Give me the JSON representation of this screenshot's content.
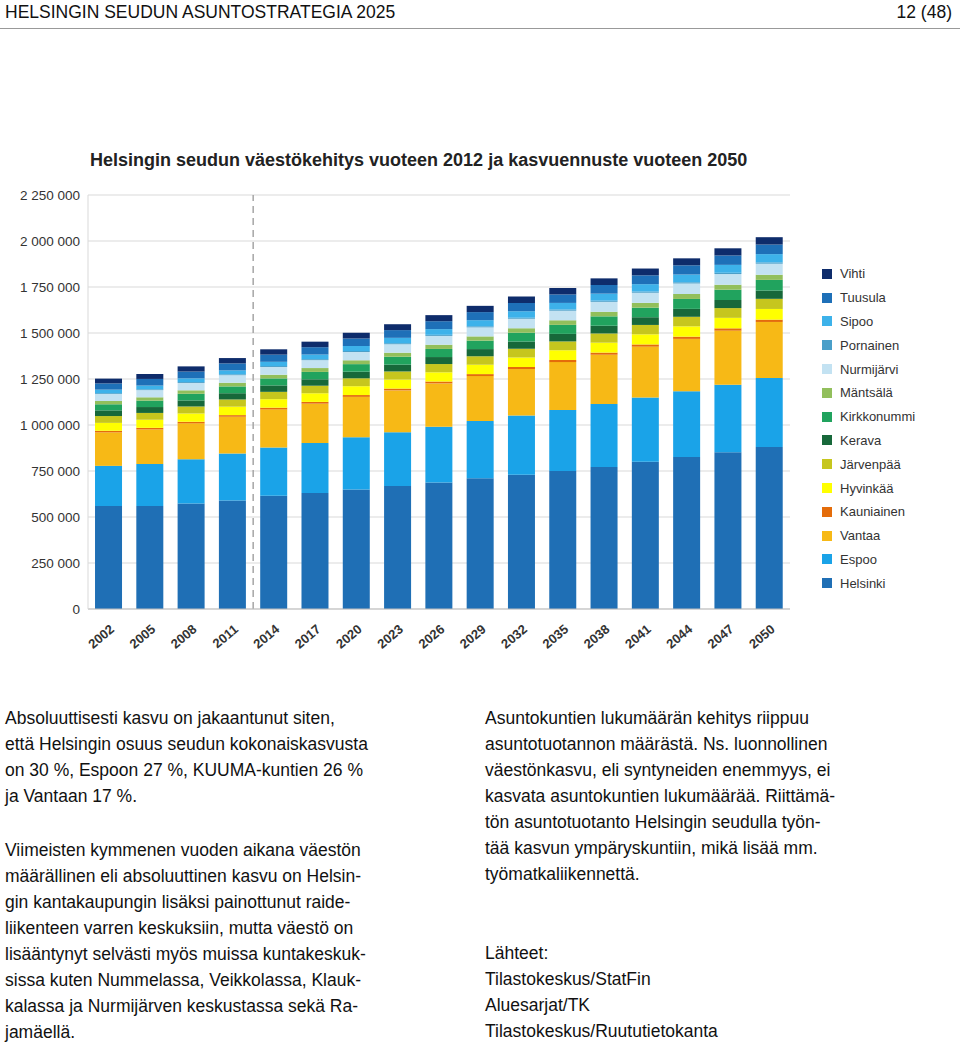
{
  "header": {
    "title": "HELSINGIN SEUDUN ASUNTOSTRATEGIA 2025",
    "page": "12 (48)"
  },
  "chart_data": {
    "type": "bar",
    "title": "Helsingin seudun väestökehitys vuoteen 2012 ja kasvuennuste vuoteen 2050",
    "stacked": true,
    "grid": true,
    "legend": "right",
    "categories": [
      "2002",
      "2005",
      "2008",
      "2011",
      "2014",
      "2017",
      "2020",
      "2023",
      "2026",
      "2029",
      "2032",
      "2035",
      "2038",
      "2041",
      "2044",
      "2047",
      "2050"
    ],
    "ylim": [
      0,
      2250000
    ],
    "yticks": [
      0,
      {
        "value": 250000,
        "label": "250 000"
      },
      {
        "value": 500000,
        "label": "500 000"
      },
      {
        "value": 750000,
        "label": "750 000"
      },
      {
        "value": 1000000,
        "label": "1 000 000"
      },
      {
        "value": 1250000,
        "label": "1 250 000"
      },
      {
        "value": 1500000,
        "label": "1 500 000"
      },
      {
        "value": 1750000,
        "label": "1 750 000"
      },
      {
        "value": 2000000,
        "label": "2 000 000"
      },
      {
        "value": 2250000,
        "label": "2 250 000"
      }
    ],
    "reference_line": {
      "x": "2011",
      "line_style": "dashed"
    },
    "series": [
      {
        "name": "Helsinki",
        "color": "#1f6fb5",
        "values": [
          560000,
          560000,
          574000,
          590000,
          616000,
          630000,
          650000,
          668000,
          688000,
          710000,
          730000,
          750000,
          772000,
          800000,
          826000,
          852000,
          880000
        ]
      },
      {
        "name": "Espoo",
        "color": "#1aa3e8",
        "values": [
          218000,
          228000,
          240000,
          255000,
          262000,
          272000,
          283000,
          292000,
          302000,
          312000,
          322000,
          332000,
          342000,
          350000,
          358000,
          367000,
          375000
        ]
      },
      {
        "name": "Vantaa",
        "color": "#f7b916",
        "values": [
          182000,
          188000,
          195000,
          200000,
          207000,
          214000,
          220000,
          228000,
          236000,
          244000,
          252000,
          260000,
          268000,
          276000,
          284000,
          294000,
          305000
        ]
      },
      {
        "name": "Kauniainen",
        "color": "#e46c0a",
        "values": [
          8600,
          8600,
          8600,
          8700,
          9200,
          9500,
          9800,
          10000,
          10300,
          10600,
          10900,
          11200,
          11500,
          11800,
          12100,
          12400,
          12700
        ]
      },
      {
        "name": "Hyvinkää",
        "color": "#ffff00",
        "values": [
          43000,
          44000,
          45000,
          46000,
          46000,
          47000,
          48000,
          49000,
          50000,
          51000,
          52000,
          53000,
          54000,
          55000,
          56000,
          57000,
          58000
        ]
      },
      {
        "name": "Järvenpää",
        "color": "#c6c61e",
        "values": [
          37000,
          37000,
          38000,
          39000,
          40000,
          41000,
          43000,
          44000,
          45000,
          46000,
          47000,
          48000,
          50000,
          51000,
          52000,
          53000,
          55000
        ]
      },
      {
        "name": "Kerava",
        "color": "#17683a",
        "values": [
          31000,
          32000,
          33000,
          34000,
          35000,
          35000,
          36000,
          37000,
          38000,
          39000,
          40000,
          41000,
          42000,
          42000,
          43000,
          44000,
          45000
        ]
      },
      {
        "name": "Kirkkonummi",
        "color": "#21a35e",
        "values": [
          33000,
          35000,
          36000,
          37000,
          38000,
          40000,
          41000,
          43000,
          44000,
          46000,
          48000,
          49000,
          51000,
          52000,
          54000,
          56000,
          58000
        ]
      },
      {
        "name": "Mäntsälä",
        "color": "#92bf5c",
        "values": [
          18000,
          18000,
          19000,
          20000,
          20000,
          21000,
          21000,
          22000,
          23000,
          23000,
          24000,
          25000,
          25000,
          26000,
          27000,
          27000,
          28000
        ]
      },
      {
        "name": "Nurmijärvi",
        "color": "#c3e2f2",
        "values": [
          38000,
          39000,
          40000,
          41000,
          42000,
          43000,
          45000,
          46000,
          48000,
          49000,
          51000,
          52000,
          54000,
          55000,
          57000,
          58000,
          60000
        ]
      },
      {
        "name": "Pornainen",
        "color": "#4a9fc9",
        "values": [
          4500,
          4700,
          5000,
          5100,
          5200,
          5400,
          5500,
          5700,
          5800,
          6000,
          6100,
          6300,
          6400,
          6600,
          6700,
          6900,
          7000
        ]
      },
      {
        "name": "Sipoo",
        "color": "#3db2ea",
        "values": [
          19000,
          20000,
          20000,
          21000,
          23000,
          25000,
          27000,
          29000,
          31000,
          33000,
          35000,
          36000,
          38000,
          40000,
          42000,
          43000,
          45000
        ]
      },
      {
        "name": "Tuusula",
        "color": "#1e70b8",
        "values": [
          34000,
          36000,
          37000,
          38000,
          39000,
          40000,
          41000,
          42000,
          43000,
          44000,
          45000,
          46000,
          47000,
          48000,
          50000,
          51000,
          52000
        ]
      },
      {
        "name": "Vihti",
        "color": "#0e2c6b",
        "values": [
          26000,
          27000,
          28000,
          29000,
          29000,
          30000,
          31000,
          32000,
          33000,
          34000,
          35000,
          35000,
          36000,
          37000,
          38000,
          39000,
          40000
        ]
      }
    ]
  },
  "text": {
    "left": [
      [
        "Absoluuttisesti kasvu on jakaantunut siten,",
        "että Helsingin osuus seudun kokonaiskasvusta",
        "on 30 %, Espoon 27 %, KUUMA-kuntien 26 %",
        "ja Vantaan 17 %."
      ],
      [
        "Viimeisten kymmenen vuoden aikana väestön",
        "määrällinen eli absoluuttinen kasvu on Helsin-",
        "gin kantakaupungin lisäksi painottunut raide-",
        "liikenteen varren keskuksiin, mutta väestö on",
        "lisääntynyt selvästi myös muissa kuntakeskuk-",
        "sissa kuten Nummelassa, Veikkolassa, Klauk-",
        "kalassa ja Nurmijärven keskustassa sekä Ra-",
        "jamäellä."
      ]
    ],
    "right": [
      [
        "Asuntokuntien lukumäärän kehitys riippuu",
        "asuntotuotannon määrästä. Ns. luonnollinen",
        "väestönkasvu, eli syntyneiden enemmyys, ei",
        "kasvata asuntokuntien lukumäärää. Riittämä-",
        "tön asuntotuotanto Helsingin seudulla työn-",
        "tää kasvun ympäryskuntiin, mikä lisää mm.",
        "työmatkaliikennettä."
      ],
      [
        "Lähteet:",
        "Tilastokeskus/StatFin",
        "Aluesarjat/TK",
        "Tilastokeskus/Ruututietokanta"
      ]
    ]
  }
}
